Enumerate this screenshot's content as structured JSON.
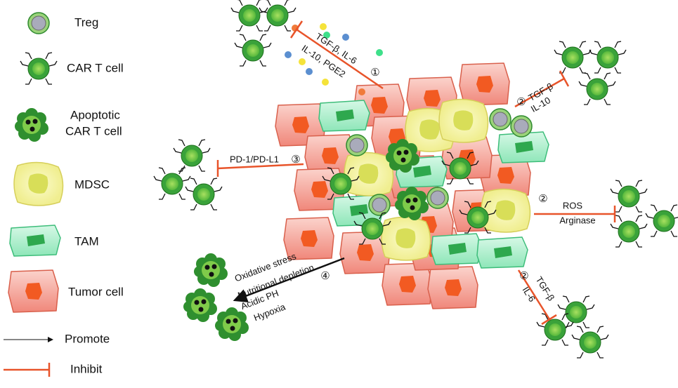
{
  "legend": {
    "treg": "Treg",
    "car_t": "CAR T cell",
    "apoptotic": [
      "Apoptotic",
      "CAR T cell"
    ],
    "mdsc": "MDSC",
    "tam": "TAM",
    "tumor": "Tumor cell",
    "promote": "Promote",
    "inhibit": "Inhibit"
  },
  "pathways": [
    {
      "number": "①",
      "lines": [
        "TGF-β, IL-6",
        "IL-10, PGE2"
      ]
    },
    {
      "number": "②",
      "lines": [
        "TGF-β",
        "IL-10"
      ]
    },
    {
      "number": "③",
      "lines": [
        "PD-1/PD-L1"
      ]
    },
    {
      "number": "②",
      "lines": [
        "ROS",
        "Arginase"
      ]
    },
    {
      "number": "②",
      "lines": [
        "TGF-β",
        "IL-6"
      ]
    },
    {
      "number": "④",
      "lines": [
        "Oxidative stress",
        "Nutritional depletion",
        "Acidic PH",
        "Hypoxia"
      ]
    }
  ]
}
